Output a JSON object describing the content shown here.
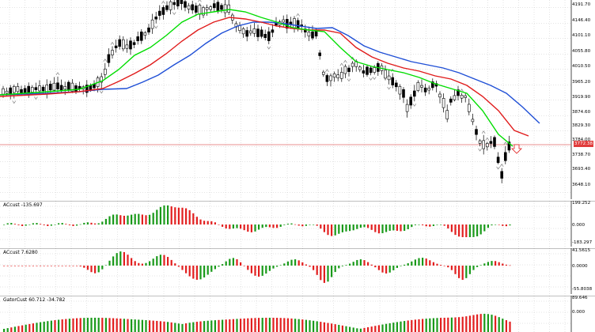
{
  "colors": {
    "background": "#ffffff",
    "grid": "#c8c8c8",
    "candle": "#000000",
    "ma_fast": "#00dd00",
    "ma_mid": "#e01b1b",
    "ma_slow": "#1f4fd6",
    "hist_up": "#1a9a1a",
    "hist_down": "#e21f1f",
    "price_line": "#e06a6a",
    "fractal": "#808080"
  },
  "main_chart": {
    "price_scale": [
      "4191.70",
      "4146.40",
      "4101.10",
      "4055.80",
      "4010.50",
      "3965.20",
      "3919.90",
      "3874.60",
      "3829.30",
      "3784.00",
      "3738.70",
      "3693.40",
      "3648.10"
    ],
    "current_price": "3772.38",
    "signal_arrow": "down-arrow-icon"
  },
  "indicators": [
    {
      "name": "ACcust",
      "label": "ACcust -135.697",
      "scale": [
        "199.252",
        "0.000",
        "-183.297"
      ]
    },
    {
      "name": "ACcust",
      "label": "ACcust 7.6280",
      "scale": [
        "41.5615",
        "0.0000",
        "-55.8038"
      ]
    },
    {
      "name": "GatorCust",
      "label": "GatorCust 60.712 -34.782",
      "scale": [
        "89.646",
        "0.000"
      ]
    }
  ]
}
